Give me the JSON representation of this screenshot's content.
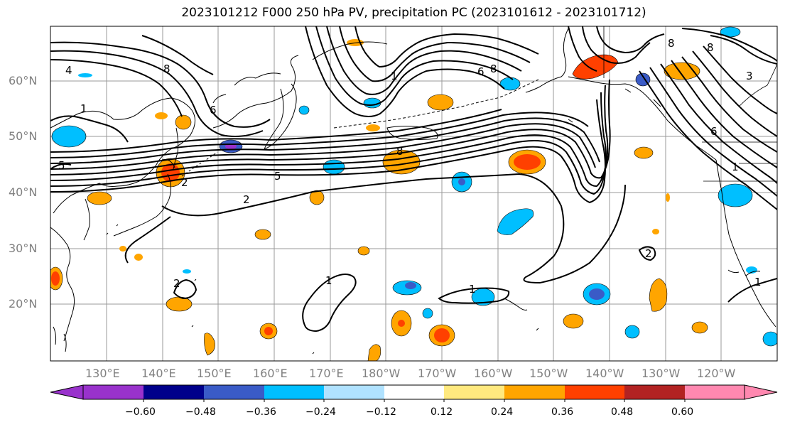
{
  "title": "2023101212 F000 250 hPa PV, precipitation PC (2023101612 - 2023101712)",
  "lat_labels": [
    "60°N",
    "50°N",
    "40°N",
    "30°N",
    "20°N"
  ],
  "lon_labels": [
    "130°E",
    "140°E",
    "150°E",
    "160°E",
    "170°E",
    "180°W",
    "170°W",
    "160°W",
    "150°W",
    "140°W",
    "130°W",
    "120°W"
  ],
  "colorbar": {
    "ticks": [
      "−0.60",
      "−0.48",
      "−0.36",
      "−0.24",
      "−0.12",
      "0.12",
      "0.24",
      "0.36",
      "0.48",
      "0.60"
    ],
    "colors": [
      "#9932CC",
      "#00008B",
      "#3A5BC7",
      "#00BFFF",
      "#B0E2FF",
      "#FFFFFF",
      "#FFE97F",
      "#FFA500",
      "#FF4000",
      "#B22222",
      "#FF88B0"
    ]
  },
  "contour_labels": [
    "4",
    "8",
    "1",
    "6",
    "5",
    "2",
    "8",
    "1",
    "8",
    "6",
    "8",
    "5",
    "2",
    "1",
    "1",
    "1",
    "2",
    "2",
    "6",
    "8",
    "1",
    "3"
  ]
}
